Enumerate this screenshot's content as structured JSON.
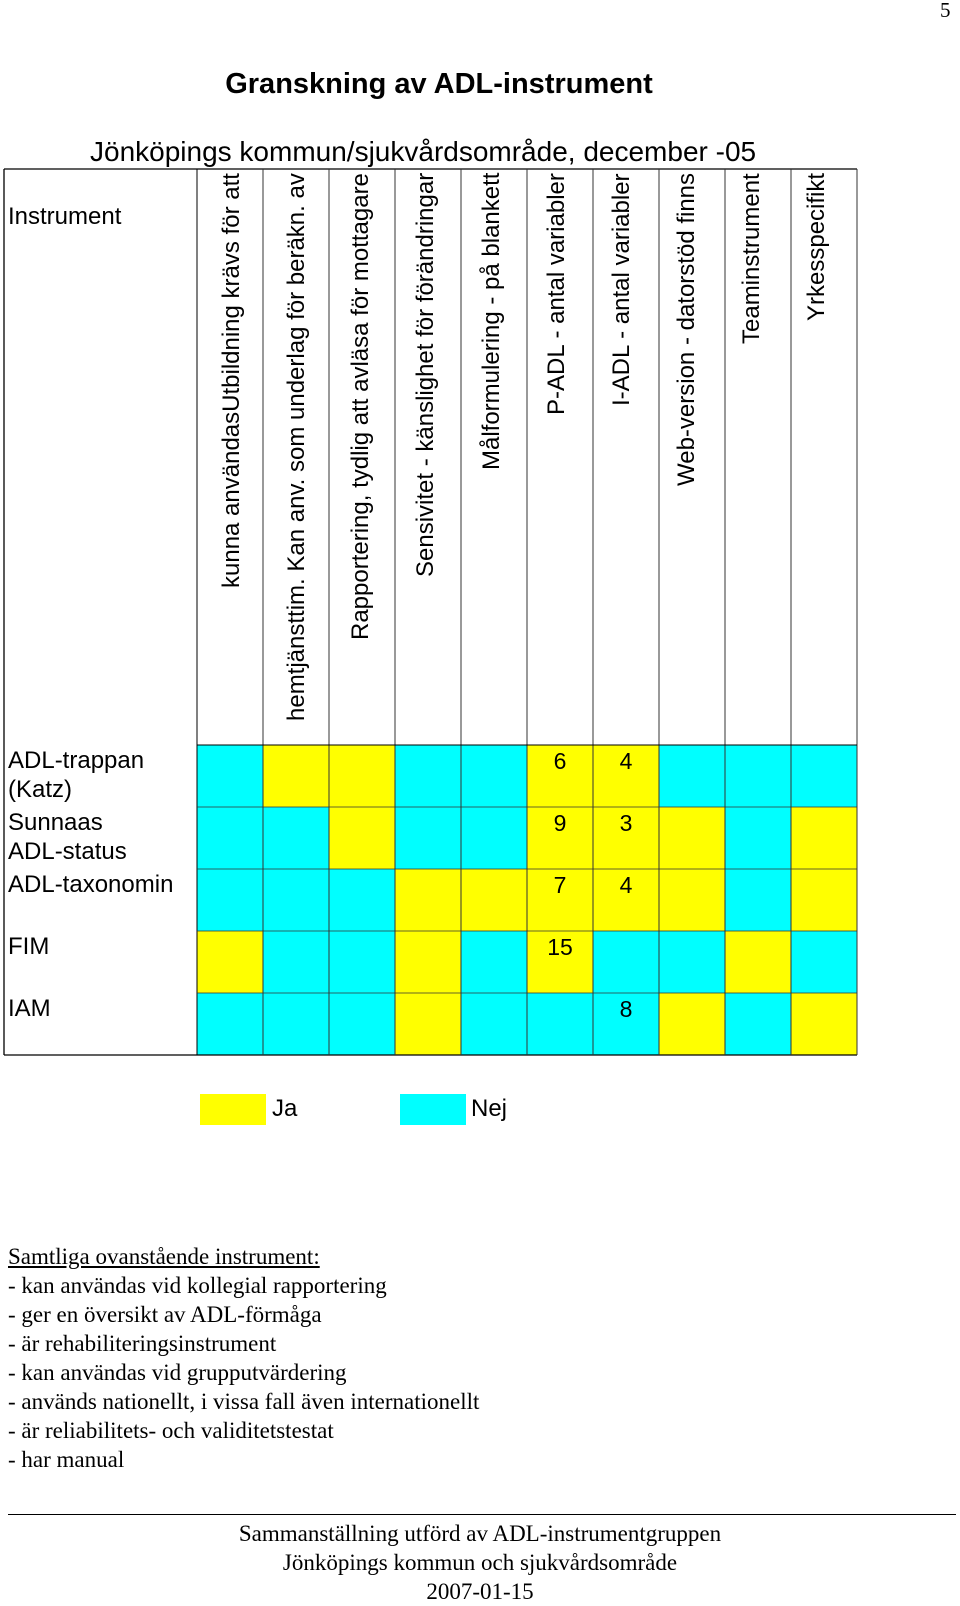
{
  "page_number": "5",
  "title": "Granskning av ADL-instrument",
  "subtitle": "Jönköpings kommun/sjukvårdsområde, december -05",
  "table": {
    "first_column_header": "Instrument",
    "columns": [
      [
        "kunna användasUtbildning krävs för att"
      ],
      [
        "hemtjänsttim.  Kan anv. som underlag för beräkn. av"
      ],
      [
        "Rapportering, tydlig att avläsa för mottagare"
      ],
      [
        "Sensivitet - känslighet för förändringar"
      ],
      [
        "Målformulering - på blankett"
      ],
      [
        "P-ADL - antal variabler"
      ],
      [
        "I-ADL - antal variabler"
      ],
      [
        "Web-version - datorstöd finns"
      ],
      [
        "Teaminstrument"
      ],
      [
        "Yrkesspecifikt"
      ]
    ],
    "rows": [
      {
        "label": [
          "ADL-trappan",
          "(Katz)"
        ],
        "cells": [
          "nej",
          "ja",
          "ja",
          "nej",
          "nej",
          "ja",
          "ja",
          "nej",
          "nej",
          "nej"
        ],
        "padl": "6",
        "iadl": "4"
      },
      {
        "label": [
          "Sunnaas",
          "ADL-status"
        ],
        "cells": [
          "nej",
          "nej",
          "ja",
          "nej",
          "nej",
          "ja",
          "ja",
          "ja",
          "nej",
          "ja"
        ],
        "padl": "9",
        "iadl": "3"
      },
      {
        "label": [
          "ADL-taxonomin"
        ],
        "cells": [
          "nej",
          "nej",
          "nej",
          "ja",
          "ja",
          "ja",
          "ja",
          "ja",
          "nej",
          "ja"
        ],
        "padl": "7",
        "iadl": "4"
      },
      {
        "label": [
          "FIM"
        ],
        "cells": [
          "ja",
          "nej",
          "nej",
          "ja",
          "nej",
          "ja",
          "nej",
          "nej",
          "ja",
          "nej"
        ],
        "padl": "15",
        "iadl": ""
      },
      {
        "label": [
          "IAM"
        ],
        "cells": [
          "nej",
          "nej",
          "nej",
          "ja",
          "nej",
          "nej",
          "nej",
          "ja",
          "nej",
          "ja"
        ],
        "padl": "",
        "iadl": "8"
      }
    ]
  },
  "legend": {
    "yes_label": "Ja",
    "no_label": "Nej",
    "yes_color": "#ffff00",
    "no_color": "#00ffff"
  },
  "notes": {
    "heading": "Samtliga ovanstående instrument:",
    "items": [
      "- kan användas vid kollegial rapportering",
      "- ger en översikt av ADL-förmåga",
      "- är rehabiliteringsinstrument",
      "- kan användas vid grupputvärdering",
      "- används nationellt, i vissa fall även internationellt",
      "- är reliabilitets- och validitetstestat",
      "- har manual"
    ]
  },
  "footer": [
    "Sammanställning utförd av ADL-instrumentgruppen",
    "Jönköpings kommun och sjukvårdsområde",
    "2007-01-15"
  ]
}
